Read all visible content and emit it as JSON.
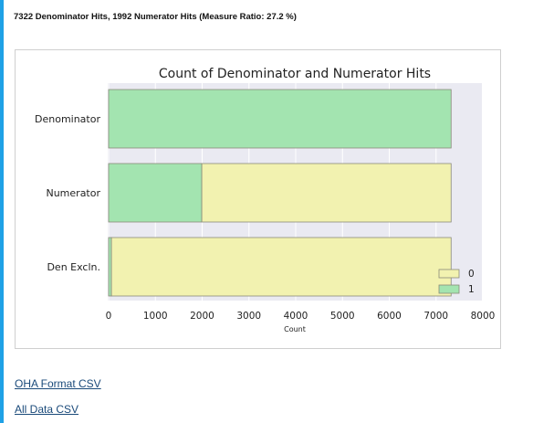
{
  "header": {
    "title": "7322 Denominator Hits, 1992 Numerator Hits (Measure Ratio: 27.2 %)"
  },
  "links": {
    "oha_csv": "OHA Format CSV",
    "all_csv": "All Data CSV"
  },
  "colors": {
    "accent_left_bar": "#1fa1e6",
    "series_0": "#f2f2b0",
    "series_1": "#a3e4b0",
    "plot_bg": "#eaeaf2",
    "link": "#1a4a7a"
  },
  "chart_data": {
    "type": "bar",
    "orientation": "horizontal",
    "stacked": true,
    "title": "Count of Denominator and Numerator Hits",
    "xlabel": "Count",
    "ylabel": "",
    "categories": [
      "Denominator",
      "Numerator",
      "Den Excln."
    ],
    "series": [
      {
        "name": "0",
        "values": [
          0,
          5330,
          7262
        ],
        "color": "#f2f2b0"
      },
      {
        "name": "1",
        "values": [
          7322,
          1992,
          60
        ],
        "color": "#a3e4b0"
      }
    ],
    "xlim": [
      0,
      8000
    ],
    "xticks": [
      "0",
      "1000",
      "2000",
      "3000",
      "4000",
      "5000",
      "6000",
      "7000",
      "8000"
    ],
    "legend_position": "bottom-right",
    "grid": true
  }
}
